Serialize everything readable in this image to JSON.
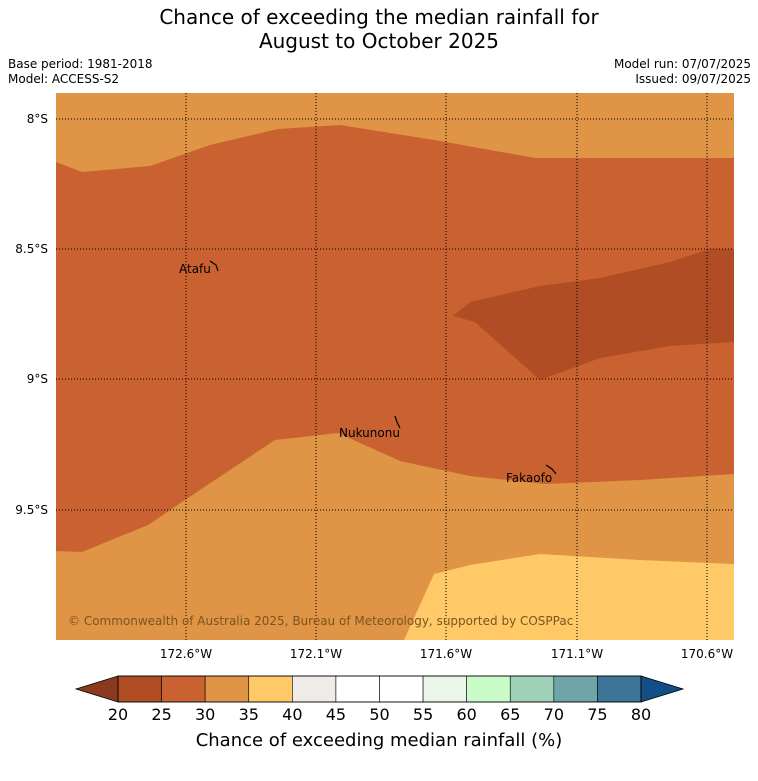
{
  "title_line1": "Chance of exceeding the median rainfall for",
  "title_line2": "August to October 2025",
  "meta": {
    "base_period": "Base period: 1981-2018",
    "model": "Model: ACCESS-S2",
    "model_run": "Model run: 07/07/2025",
    "issued": "Issued: 09/07/2025"
  },
  "axes": {
    "lat_labels": [
      "8°S",
      "8.5°S",
      "9°S",
      "9.5°S"
    ],
    "lon_labels": [
      "172.6°W",
      "172.1°W",
      "171.6°W",
      "171.1°W",
      "170.6°W"
    ]
  },
  "places": [
    {
      "name": "Atafu"
    },
    {
      "name": "Nukunonu"
    },
    {
      "name": "Fakaofo"
    }
  ],
  "copyright": "© Commonwealth of Australia 2025, Bureau of Meteorology, supported by COSPPac",
  "colorbar": {
    "label": "Chance of exceeding median rainfall (%)",
    "ticks": [
      "20",
      "25",
      "30",
      "35",
      "40",
      "45",
      "50",
      "55",
      "60",
      "65",
      "70",
      "75",
      "80"
    ],
    "colors": [
      "#b04d25",
      "#c96230",
      "#e09445",
      "#fec966",
      "#efebe6",
      "#ffffff",
      "#ffffff",
      "#eaf6ea",
      "#c9fbc9",
      "#9fd0b8",
      "#6fa4a8",
      "#3e7597"
    ],
    "under_color": "#8b3a1f",
    "over_color": "#124f87"
  },
  "map_colors": {
    "band_30_35": "#e09445",
    "band_25_30": "#c96230",
    "band_20_25": "#b04d25",
    "band_35_40": "#fec966"
  }
}
